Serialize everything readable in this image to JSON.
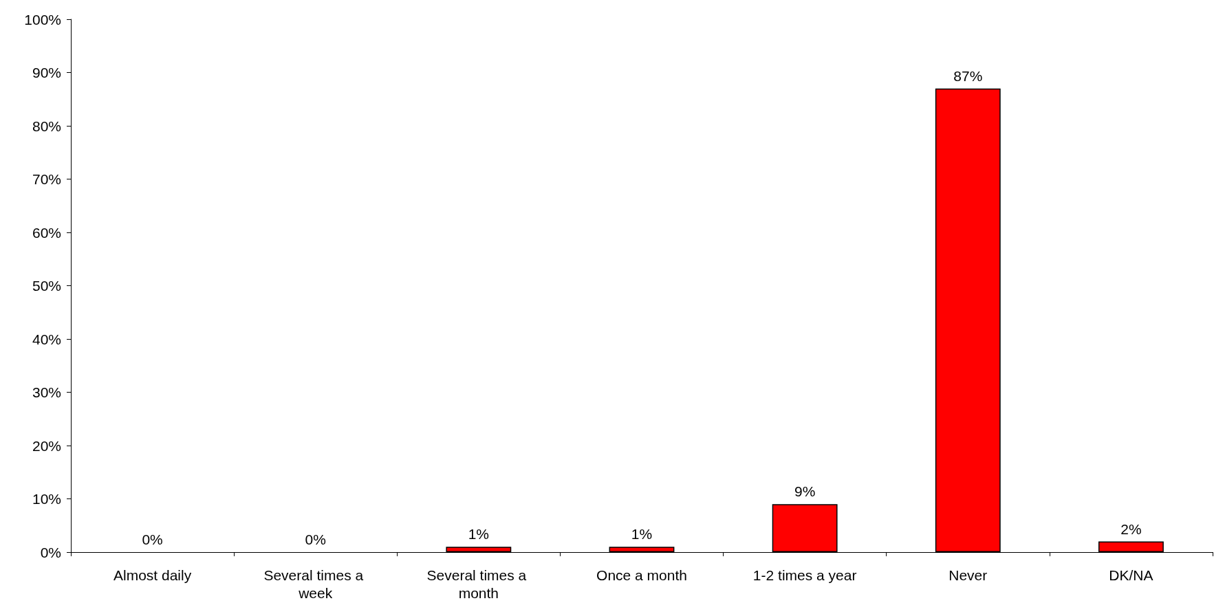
{
  "chart_data": {
    "type": "bar",
    "categories": [
      "Almost daily",
      "Several times a week",
      "Several times a month",
      "Once a month",
      "1-2 times a year",
      "Never",
      "DK/NA"
    ],
    "values": [
      0,
      0,
      1,
      1,
      9,
      87,
      2
    ],
    "value_labels": [
      "0%",
      "0%",
      "1%",
      "1%",
      "9%",
      "87%",
      "2%"
    ],
    "color": "#ff0000",
    "ylim": [
      0,
      100
    ],
    "yticks": [
      {
        "value": 0,
        "label": "0%"
      },
      {
        "value": 10,
        "label": "10%"
      },
      {
        "value": 20,
        "label": "20%"
      },
      {
        "value": 30,
        "label": "30%"
      },
      {
        "value": 40,
        "label": "40%"
      },
      {
        "value": 50,
        "label": "50%"
      },
      {
        "value": 60,
        "label": "60%"
      },
      {
        "value": 70,
        "label": "70%"
      },
      {
        "value": 80,
        "label": "80%"
      },
      {
        "value": 90,
        "label": "90%"
      },
      {
        "value": 100,
        "label": "100%"
      }
    ],
    "grid": false
  }
}
